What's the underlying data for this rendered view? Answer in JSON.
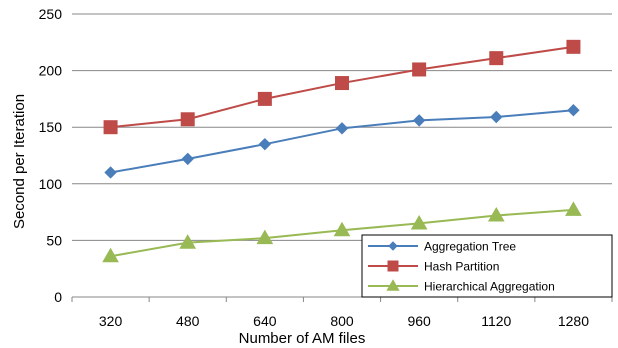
{
  "chart_data": {
    "type": "line",
    "categories": [
      "320",
      "480",
      "640",
      "800",
      "960",
      "1120",
      "1280"
    ],
    "series": [
      {
        "name": "Aggregation Tree",
        "values": [
          110,
          122,
          135,
          149,
          156,
          159,
          165
        ],
        "color": "#4a7ebb",
        "marker": "diamond"
      },
      {
        "name": "Hash Partition",
        "values": [
          150,
          157,
          175,
          189,
          201,
          211,
          221
        ],
        "color": "#be4b48",
        "marker": "square"
      },
      {
        "name": "Hierarchical Aggregation",
        "values": [
          36,
          48,
          52,
          59,
          65,
          72,
          77
        ],
        "color": "#98b954",
        "marker": "triangle"
      }
    ],
    "title": "",
    "xlabel": "Number of AM files",
    "ylabel": "Second per Iteration",
    "ylim": [
      0,
      250
    ],
    "yticks": [
      0,
      50,
      100,
      150,
      200,
      250
    ],
    "grid": true,
    "legend_position": "bottom-right"
  }
}
